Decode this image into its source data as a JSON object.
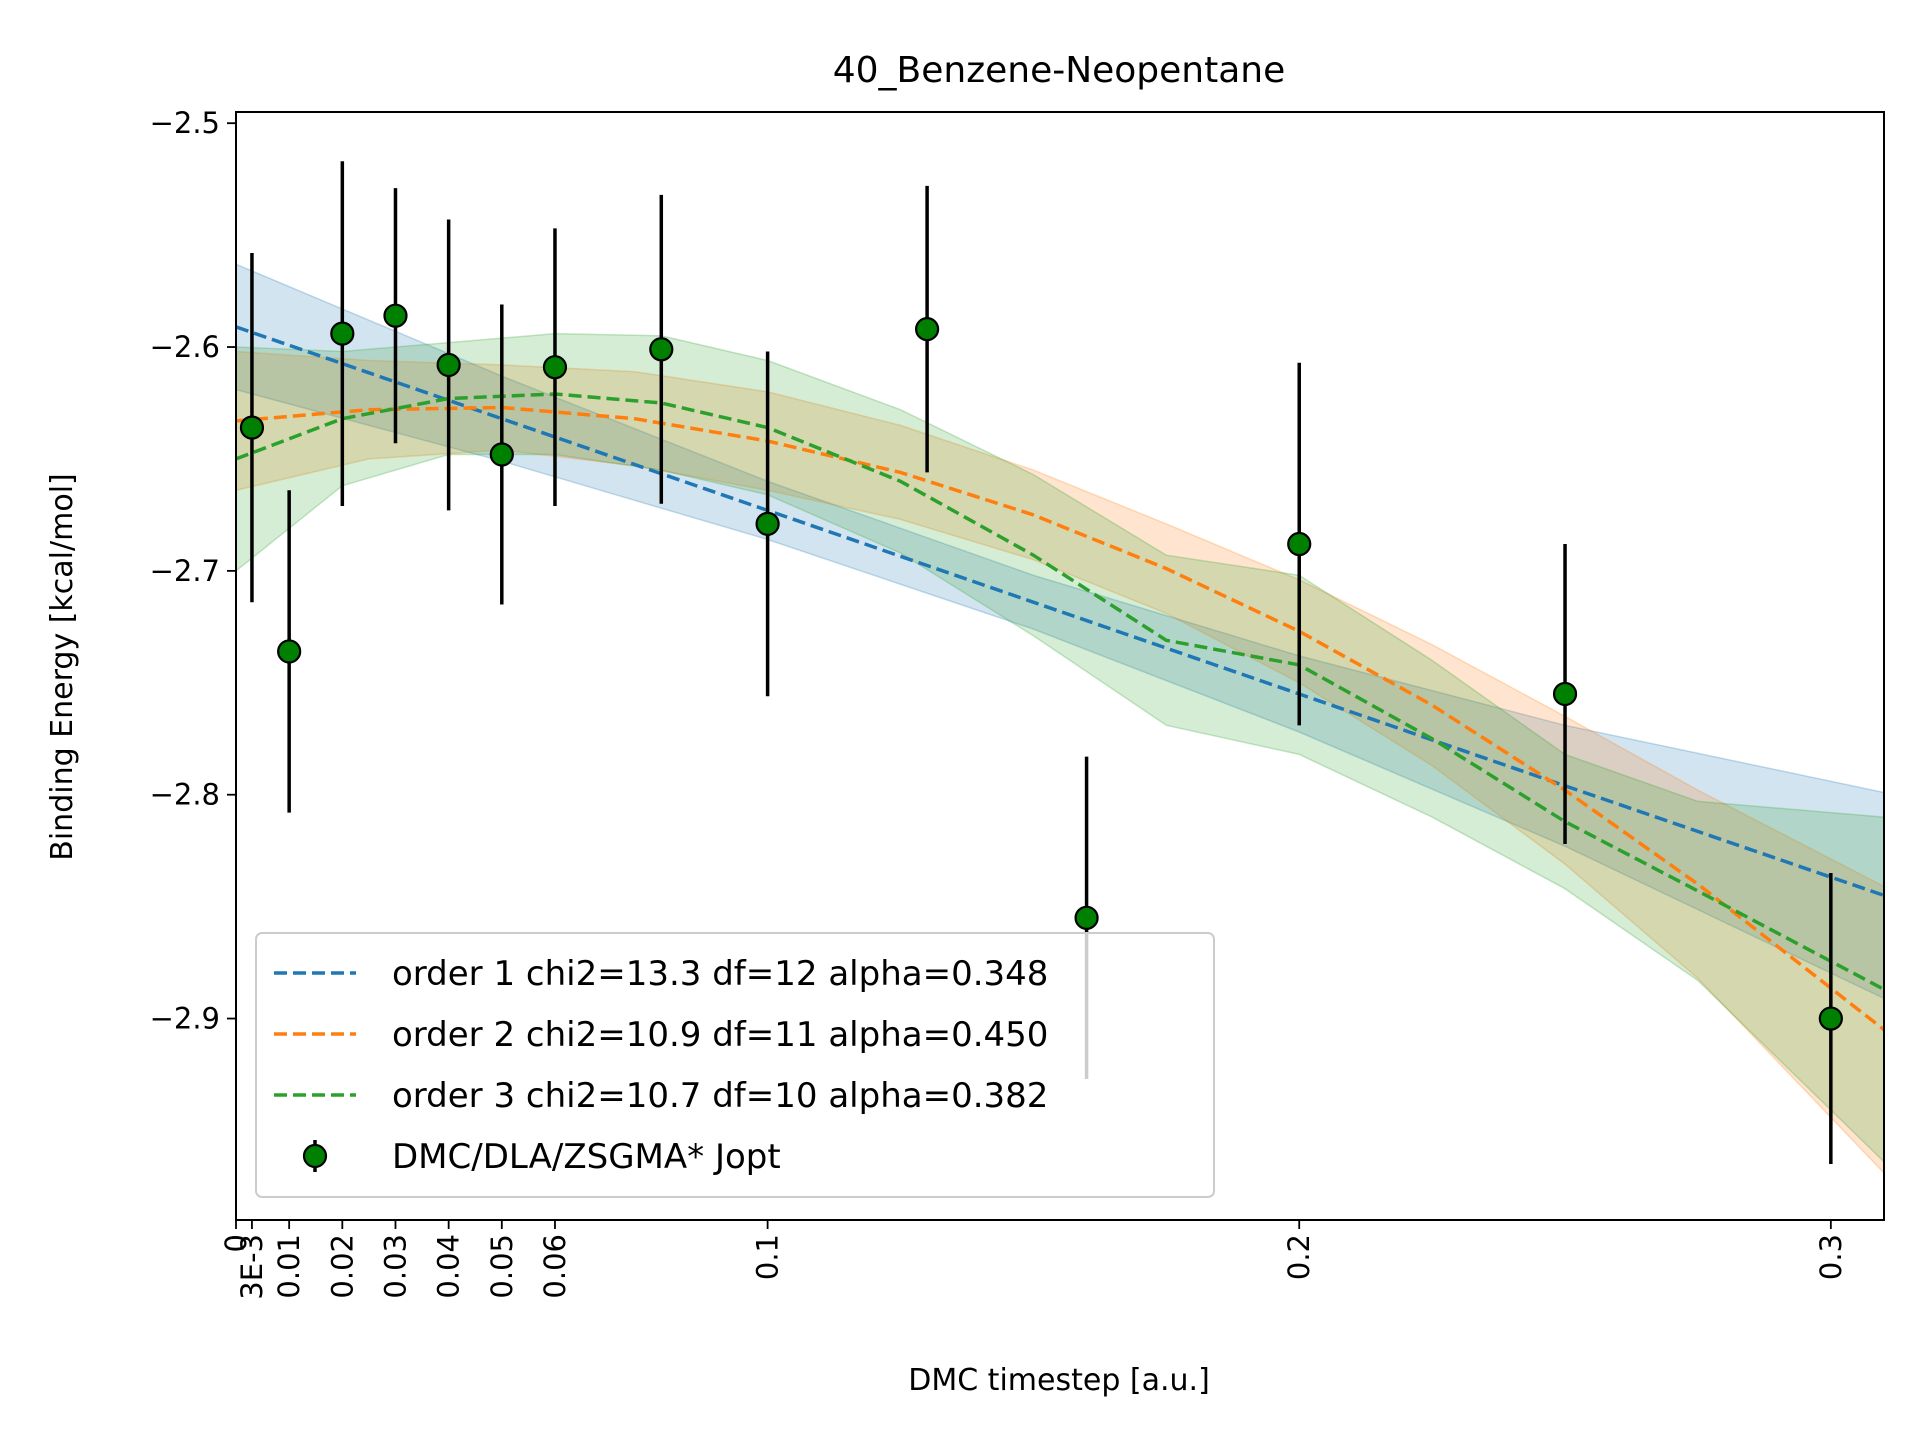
{
  "chart_data": {
    "type": "scatter",
    "title": "40_Benzene-Neopentane",
    "xlabel": "DMC timestep [a.u.]",
    "ylabel": "Binding Energy [kcal/mol]",
    "xlim": [
      0,
      0.31
    ],
    "ylim": [
      -2.99,
      -2.495
    ],
    "x_ticks": [
      {
        "value": 0,
        "label": "0"
      },
      {
        "value": 0.003,
        "label": "3E-3"
      },
      {
        "value": 0.01,
        "label": "0.01"
      },
      {
        "value": 0.02,
        "label": "0.02"
      },
      {
        "value": 0.03,
        "label": "0.03"
      },
      {
        "value": 0.04,
        "label": "0.04"
      },
      {
        "value": 0.05,
        "label": "0.05"
      },
      {
        "value": 0.06,
        "label": "0.06"
      },
      {
        "value": 0.1,
        "label": "0.1"
      },
      {
        "value": 0.2,
        "label": "0.2"
      },
      {
        "value": 0.3,
        "label": "0.3"
      }
    ],
    "y_ticks": [
      {
        "value": -2.5,
        "label": "−2.5"
      },
      {
        "value": -2.6,
        "label": "−2.6"
      },
      {
        "value": -2.7,
        "label": "−2.7"
      },
      {
        "value": -2.8,
        "label": "−2.8"
      },
      {
        "value": -2.9,
        "label": "−2.9"
      }
    ],
    "legend_position": "lower-left",
    "data_series": {
      "name": "DMC/DLA/ZSGMA* Jopt",
      "color": "#008000",
      "points": [
        {
          "x": 0.003,
          "y": -2.636,
          "err": 0.078
        },
        {
          "x": 0.01,
          "y": -2.736,
          "err": 0.072
        },
        {
          "x": 0.02,
          "y": -2.594,
          "err": 0.077
        },
        {
          "x": 0.03,
          "y": -2.586,
          "err": 0.057
        },
        {
          "x": 0.04,
          "y": -2.608,
          "err": 0.065
        },
        {
          "x": 0.05,
          "y": -2.648,
          "err": 0.067
        },
        {
          "x": 0.06,
          "y": -2.609,
          "err": 0.062
        },
        {
          "x": 0.08,
          "y": -2.601,
          "err": 0.069
        },
        {
          "x": 0.1,
          "y": -2.679,
          "err": 0.077
        },
        {
          "x": 0.13,
          "y": -2.592,
          "err": 0.064
        },
        {
          "x": 0.16,
          "y": -2.855,
          "err": 0.072
        },
        {
          "x": 0.2,
          "y": -2.688,
          "err": 0.081
        },
        {
          "x": 0.25,
          "y": -2.755,
          "err": 0.067
        },
        {
          "x": 0.3,
          "y": -2.9,
          "err": 0.065
        }
      ]
    },
    "fits": [
      {
        "name": "order 1 chi2=13.3 df=12 alpha=0.348",
        "color": "#1f77b4",
        "x": [
          0,
          0.05,
          0.1,
          0.15,
          0.2,
          0.25,
          0.31
        ],
        "y": [
          -2.591,
          -2.632,
          -2.673,
          -2.714,
          -2.755,
          -2.796,
          -2.845
        ],
        "band_width": [
          0.028,
          0.019,
          0.013,
          0.012,
          0.017,
          0.027,
          0.046
        ]
      },
      {
        "name": "order 2 chi2=10.9 df=11 alpha=0.450",
        "color": "#ff7f0e",
        "x": [
          0,
          0.025,
          0.05,
          0.075,
          0.1,
          0.125,
          0.15,
          0.175,
          0.2,
          0.225,
          0.25,
          0.275,
          0.31
        ],
        "y": [
          -2.633,
          -2.628,
          -2.627,
          -2.632,
          -2.642,
          -2.656,
          -2.675,
          -2.699,
          -2.727,
          -2.76,
          -2.798,
          -2.84,
          -2.905
        ],
        "band_width": [
          0.031,
          0.022,
          0.019,
          0.021,
          0.022,
          0.021,
          0.02,
          0.02,
          0.023,
          0.027,
          0.033,
          0.042,
          0.064
        ]
      },
      {
        "name": "order 3 chi2=10.7 df=10 alpha=0.382",
        "color": "#2ca02c",
        "x": [
          0,
          0.02,
          0.04,
          0.06,
          0.08,
          0.1,
          0.125,
          0.15,
          0.175,
          0.2,
          0.225,
          0.25,
          0.275,
          0.31
        ],
        "y": [
          -2.65,
          -2.632,
          -2.623,
          -2.621,
          -2.625,
          -2.636,
          -2.66,
          -2.693,
          -2.731,
          -2.742,
          -2.775,
          -2.812,
          -2.843,
          -2.887
        ],
        "band_width": [
          0.05,
          0.03,
          0.025,
          0.027,
          0.03,
          0.03,
          0.032,
          0.036,
          0.038,
          0.04,
          0.035,
          0.03,
          0.04,
          0.077
        ]
      }
    ]
  }
}
